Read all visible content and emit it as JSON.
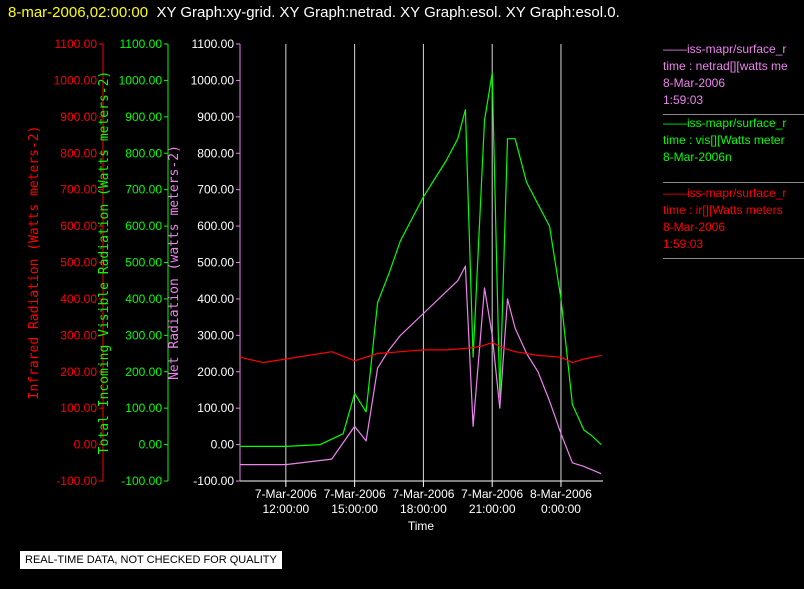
{
  "header": {
    "timestamp": "8-mar-2006,02:00:00",
    "titles": "XY Graph:xy-grid.  XY Graph:netrad.  XY Graph:esol.  XY Graph:esol.0."
  },
  "colors": {
    "infrared": "#ff0000",
    "visible": "#00ff00",
    "netrad": "#ee82ee",
    "axis_text": "#ffffff",
    "grid": "#d8d8d8"
  },
  "legend": [
    {
      "color": "#ee82ee",
      "lines": [
        "——iss-mapr/surface_r",
        "time : netrad[][watts me",
        "8-Mar-2006",
        "1:59:03"
      ]
    },
    {
      "color": "#00ff00",
      "lines": [
        "——iss-mapr/surface_r",
        "time : vis[][Watts meter",
        "8-Mar-2006n"
      ]
    },
    {
      "color": "#ff0000",
      "lines": [
        "——iss-mapr/surface_r",
        "time : ir[][Watts meters",
        "8-Mar-2006",
        "1:59:03"
      ]
    }
  ],
  "notice": "REAL-TIME DATA, NOT CHECKED FOR QUALITY",
  "chart_data": {
    "type": "line",
    "xlabel": "Time",
    "xlim": [
      "2006-03-07 10:00",
      "2006-03-08 01:50"
    ],
    "x_ticks": [
      {
        "date": "7-Mar-2006",
        "time": "12:00:00"
      },
      {
        "date": "7-Mar-2006",
        "time": "15:00:00"
      },
      {
        "date": "7-Mar-2006",
        "time": "18:00:00"
      },
      {
        "date": "7-Mar-2006",
        "time": "21:00:00"
      },
      {
        "date": "8-Mar-2006",
        "time": "0:00:00"
      }
    ],
    "vertical_grid": true,
    "axes": [
      {
        "label": "Infrared Radiation (Watts meters-2)",
        "color": "#ff0000",
        "ylim": [
          -100,
          1100
        ],
        "ticks": [
          "-100.00",
          "0.00",
          "100.00",
          "200.00",
          "300.00",
          "400.00",
          "500.00",
          "600.00",
          "700.00",
          "800.00",
          "900.00",
          "1000.00",
          "1100.00"
        ]
      },
      {
        "label": "Total Incoming Visible Radiation (Watts meters-2)",
        "color": "#00ff00",
        "ylim": [
          -100,
          1100
        ],
        "ticks": [
          "-100.00",
          "0.00",
          "100.00",
          "200.00",
          "300.00",
          "400.00",
          "500.00",
          "600.00",
          "700.00",
          "800.00",
          "900.00",
          "1000.00",
          "1100.00"
        ]
      },
      {
        "label": "Net Radiation (watts meters-2)",
        "color": "#ee82ee",
        "ylim": [
          -100,
          1100
        ],
        "ticks": [
          "-100.00",
          "0.00",
          "100.00",
          "200.00",
          "300.00",
          "400.00",
          "500.00",
          "600.00",
          "700.00",
          "800.00",
          "900.00",
          "1000.00",
          "1100.00"
        ]
      }
    ],
    "series": [
      {
        "key": "visible",
        "color": "#00ff00",
        "x": [
          "2006-03-07 10:00",
          "2006-03-07 12:00",
          "2006-03-07 13:30",
          "2006-03-07 14:30",
          "2006-03-07 15:00",
          "2006-03-07 15:30",
          "2006-03-07 16:00",
          "2006-03-07 16:30",
          "2006-03-07 17:00",
          "2006-03-07 18:00",
          "2006-03-07 19:00",
          "2006-03-07 19:30",
          "2006-03-07 19:50",
          "2006-03-07 20:10",
          "2006-03-07 20:40",
          "2006-03-07 21:00",
          "2006-03-07 21:20",
          "2006-03-07 21:40",
          "2006-03-07 22:00",
          "2006-03-07 22:30",
          "2006-03-07 23:00",
          "2006-03-07 23:30",
          "2006-03-08 00:00",
          "2006-03-08 00:30",
          "2006-03-08 01:00",
          "2006-03-08 01:20",
          "2006-03-08 01:45"
        ],
        "y": [
          -5,
          -5,
          0,
          30,
          140,
          90,
          390,
          470,
          560,
          680,
          780,
          840,
          920,
          240,
          890,
          1020,
          130,
          840,
          840,
          720,
          660,
          600,
          400,
          110,
          40,
          25,
          0
        ]
      },
      {
        "key": "netrad",
        "color": "#ee82ee",
        "x": [
          "2006-03-07 10:00",
          "2006-03-07 12:00",
          "2006-03-07 14:00",
          "2006-03-07 15:00",
          "2006-03-07 15:30",
          "2006-03-07 16:00",
          "2006-03-07 16:30",
          "2006-03-07 17:00",
          "2006-03-07 18:00",
          "2006-03-07 19:00",
          "2006-03-07 19:30",
          "2006-03-07 19:50",
          "2006-03-07 20:10",
          "2006-03-07 20:40",
          "2006-03-07 21:00",
          "2006-03-07 21:20",
          "2006-03-07 21:40",
          "2006-03-07 22:00",
          "2006-03-07 22:30",
          "2006-03-07 23:00",
          "2006-03-07 23:30",
          "2006-03-08 00:00",
          "2006-03-08 00:30",
          "2006-03-08 01:00",
          "2006-03-08 01:45"
        ],
        "y": [
          -55,
          -55,
          -40,
          50,
          10,
          210,
          260,
          300,
          360,
          420,
          450,
          490,
          50,
          430,
          300,
          100,
          400,
          320,
          250,
          200,
          120,
          30,
          -50,
          -60,
          -80
        ]
      },
      {
        "key": "infrared",
        "color": "#ff0000",
        "x": [
          "2006-03-07 10:00",
          "2006-03-07 11:00",
          "2006-03-07 12:00",
          "2006-03-07 13:00",
          "2006-03-07 14:00",
          "2006-03-07 15:00",
          "2006-03-07 16:00",
          "2006-03-07 17:00",
          "2006-03-07 18:00",
          "2006-03-07 19:00",
          "2006-03-07 20:00",
          "2006-03-07 20:30",
          "2006-03-07 21:00",
          "2006-03-07 21:30",
          "2006-03-07 22:00",
          "2006-03-07 23:00",
          "2006-03-08 00:00",
          "2006-03-08 00:30",
          "2006-03-08 01:00",
          "2006-03-08 01:45"
        ],
        "y": [
          240,
          225,
          235,
          245,
          255,
          230,
          250,
          255,
          260,
          260,
          265,
          270,
          280,
          265,
          255,
          245,
          240,
          225,
          235,
          245
        ]
      }
    ]
  }
}
